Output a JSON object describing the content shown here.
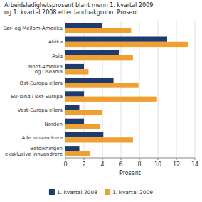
{
  "chart_data": {
    "type": "bar",
    "orientation": "horizontal",
    "title": "Arbeidsledighetsprosent blant menn 1. kvartal 2009\nog 1. kvartal 2008 etter landbakgrunn. Prosent",
    "categories": [
      "Befolkningen\neksklusive innvandrere",
      "Alle innvandrere",
      "Norden",
      "Vest-Europa ellers",
      "EU-land i Øst-Europa",
      "Øst-Europa ellers",
      "Nord-Amerika\nog Oseania",
      "Asia",
      "Afrika",
      "Sør- og Mellom-Amerika"
    ],
    "series": [
      {
        "name": "1. kvartal 2008",
        "color": "#1f3b6e",
        "values": [
          1.5,
          4.1,
          2.0,
          1.5,
          2.0,
          5.2,
          2.0,
          5.8,
          11.0,
          4.0
        ]
      },
      {
        "name": "1. kvartal 2009",
        "color": "#f0a030",
        "values": [
          2.7,
          7.3,
          3.7,
          4.0,
          9.9,
          7.9,
          2.5,
          7.3,
          13.3,
          7.1
        ]
      }
    ],
    "xlabel": "Prosent",
    "xlim": [
      0,
      14
    ],
    "xticks": [
      0,
      2,
      4,
      6,
      8,
      10,
      12,
      14
    ],
    "grid": true,
    "legend": "bottom"
  }
}
